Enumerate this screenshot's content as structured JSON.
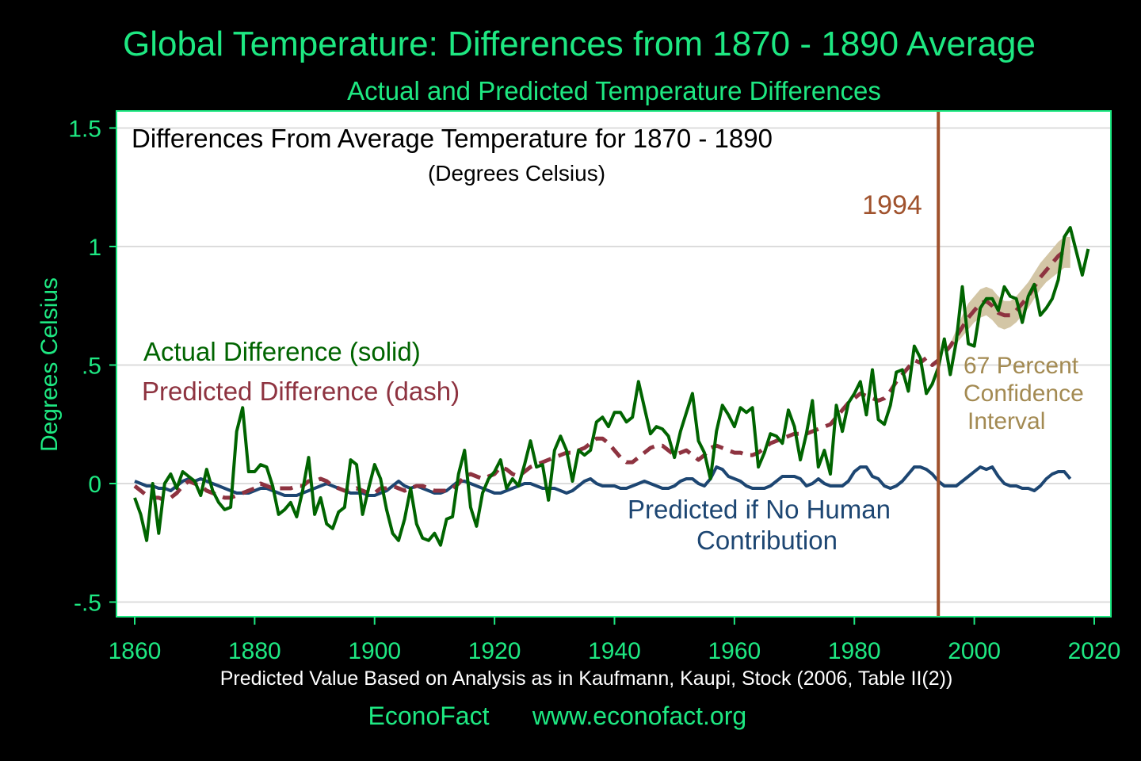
{
  "chart_data": {
    "type": "line",
    "title": "Global Temperature: Differences from 1870 - 1890 Average",
    "subtitle": "Actual and Predicted Temperature Differences",
    "inner_title": "Differences From Average Temperature for 1870 - 1890",
    "inner_subtitle": "(Degrees Celsius)",
    "ylabel": "Degrees Celsius",
    "xlabel": "Predicted Value Based on Analysis as in Kaufmann, Kaupi, Stock (2006, Table II(2))",
    "footer_left": "EconoFact",
    "footer_right": "www.econofact.org",
    "xlim": [
      1857,
      2023
    ],
    "ylim": [
      -0.56,
      1.58
    ],
    "x_ticks": [
      1860,
      1880,
      1900,
      1920,
      1940,
      1960,
      1980,
      2000,
      2020
    ],
    "x_tick_labels": [
      "1860",
      "1880",
      "1900",
      "1920",
      "1940",
      "1960",
      "1980",
      "2000",
      "2020"
    ],
    "y_ticks": [
      1.5,
      1,
      0.5,
      0,
      -0.5
    ],
    "y_tick_labels": [
      "1.5",
      "1",
      ".5",
      "0",
      "-.5"
    ],
    "grid": true,
    "colors": {
      "actual": "#006400",
      "predicted": "#8E3340",
      "natural": "#1D4672",
      "marker": "#A0522D",
      "ci": "#D3C6A6",
      "ci_text": "#A38A52",
      "title": "#1EE882"
    },
    "vline": {
      "x": 1994,
      "label": "1994"
    },
    "series": [
      {
        "name": "Actual Difference (solid)",
        "style": "solid",
        "x_start": 1860,
        "values": [
          -0.06,
          -0.13,
          -0.24,
          0.0,
          -0.21,
          0.0,
          0.04,
          -0.02,
          0.05,
          0.03,
          0.01,
          -0.05,
          0.06,
          -0.03,
          -0.08,
          -0.11,
          -0.1,
          0.22,
          0.32,
          0.05,
          0.05,
          0.08,
          0.07,
          -0.01,
          -0.13,
          -0.11,
          -0.08,
          -0.14,
          -0.03,
          0.11,
          -0.13,
          -0.06,
          -0.17,
          -0.19,
          -0.12,
          -0.1,
          0.1,
          0.08,
          -0.13,
          -0.02,
          0.08,
          0.02,
          -0.11,
          -0.21,
          -0.24,
          -0.15,
          -0.02,
          -0.17,
          -0.23,
          -0.24,
          -0.21,
          -0.26,
          -0.15,
          -0.14,
          0.04,
          0.14,
          -0.1,
          -0.18,
          -0.04,
          0.02,
          0.05,
          0.1,
          -0.02,
          0.02,
          -0.01,
          0.08,
          0.18,
          0.07,
          0.08,
          -0.07,
          0.14,
          0.2,
          0.14,
          0.01,
          0.14,
          0.12,
          0.14,
          0.26,
          0.28,
          0.24,
          0.3,
          0.3,
          0.26,
          0.28,
          0.43,
          0.32,
          0.21,
          0.24,
          0.23,
          0.2,
          0.11,
          0.22,
          0.3,
          0.38,
          0.18,
          0.13,
          0.02,
          0.22,
          0.33,
          0.29,
          0.24,
          0.32,
          0.3,
          0.32,
          0.07,
          0.13,
          0.21,
          0.2,
          0.17,
          0.31,
          0.24,
          0.1,
          0.21,
          0.35,
          0.07,
          0.14,
          0.04,
          0.33,
          0.22,
          0.34,
          0.38,
          0.43,
          0.29,
          0.48,
          0.27,
          0.25,
          0.33,
          0.47,
          0.48,
          0.39,
          0.58,
          0.53,
          0.38,
          0.42,
          0.49,
          0.61,
          0.46,
          0.6,
          0.83,
          0.59,
          0.58,
          0.74,
          0.78,
          0.78,
          0.73,
          0.83,
          0.79,
          0.78,
          0.68,
          0.79,
          0.84,
          0.71,
          0.74,
          0.78,
          0.86,
          1.04,
          1.08,
          0.98,
          0.88,
          0.99
        ]
      },
      {
        "name": "Predicted Difference (dash)",
        "style": "dash",
        "x_start": 1860,
        "values": [
          -0.01,
          -0.03,
          -0.05,
          -0.06,
          -0.06,
          -0.07,
          -0.06,
          -0.04,
          -0.01,
          0.01,
          0.0,
          -0.01,
          -0.03,
          -0.04,
          -0.05,
          -0.06,
          -0.06,
          -0.05,
          -0.04,
          -0.03,
          -0.02,
          0.0,
          -0.01,
          -0.02,
          -0.02,
          -0.02,
          -0.02,
          -0.01,
          -0.01,
          0.01,
          0.01,
          0.02,
          0.01,
          -0.01,
          -0.02,
          -0.03,
          -0.03,
          -0.02,
          -0.03,
          -0.04,
          -0.04,
          -0.02,
          -0.02,
          -0.01,
          -0.02,
          -0.03,
          -0.02,
          -0.01,
          -0.01,
          -0.02,
          -0.03,
          -0.03,
          -0.03,
          -0.02,
          0.0,
          0.03,
          0.04,
          0.03,
          0.02,
          0.03,
          0.04,
          0.07,
          0.06,
          0.04,
          0.03,
          0.05,
          0.07,
          0.08,
          0.09,
          0.1,
          0.11,
          0.12,
          0.13,
          0.13,
          0.14,
          0.15,
          0.17,
          0.19,
          0.19,
          0.17,
          0.14,
          0.11,
          0.09,
          0.09,
          0.11,
          0.13,
          0.15,
          0.16,
          0.16,
          0.14,
          0.12,
          0.13,
          0.14,
          0.12,
          0.1,
          0.12,
          0.15,
          0.16,
          0.15,
          0.14,
          0.13,
          0.13,
          0.12,
          0.12,
          0.13,
          0.15,
          0.17,
          0.18,
          0.19,
          0.2,
          0.21,
          0.21,
          0.21,
          0.22,
          0.23,
          0.24,
          0.25,
          0.28,
          0.31,
          0.34,
          0.36,
          0.38,
          0.37,
          0.36,
          0.35,
          0.36,
          0.39,
          0.43,
          0.46,
          0.49,
          0.52,
          0.51,
          0.53,
          0.5,
          0.52,
          0.55,
          0.58,
          0.62,
          0.66,
          0.7,
          0.73,
          0.76,
          0.77,
          0.75,
          0.72,
          0.71,
          0.71,
          0.73,
          0.76,
          0.79,
          0.83,
          0.87,
          0.9,
          0.93,
          0.96,
          0.98,
          0.98
        ]
      },
      {
        "name": "Predicted if No Human Contribution",
        "style": "solid",
        "x_start": 1860,
        "values": [
          0.01,
          0.0,
          -0.01,
          -0.01,
          -0.02,
          -0.02,
          -0.03,
          -0.01,
          0.01,
          0.02,
          0.01,
          0.02,
          0.01,
          0.0,
          -0.01,
          -0.02,
          -0.03,
          -0.04,
          -0.04,
          -0.04,
          -0.03,
          -0.02,
          -0.02,
          -0.03,
          -0.04,
          -0.05,
          -0.05,
          -0.05,
          -0.04,
          -0.03,
          -0.02,
          -0.01,
          0.0,
          -0.01,
          -0.02,
          -0.03,
          -0.04,
          -0.04,
          -0.04,
          -0.05,
          -0.05,
          -0.04,
          -0.03,
          -0.01,
          0.01,
          -0.01,
          -0.02,
          -0.01,
          -0.02,
          -0.03,
          -0.04,
          -0.04,
          -0.03,
          -0.01,
          0.01,
          0.01,
          0.0,
          -0.01,
          -0.02,
          -0.03,
          -0.04,
          -0.04,
          -0.03,
          -0.02,
          -0.01,
          0.0,
          0.0,
          -0.01,
          -0.02,
          -0.02,
          -0.02,
          -0.03,
          -0.04,
          -0.03,
          -0.01,
          0.01,
          0.02,
          0.0,
          -0.01,
          -0.01,
          -0.01,
          -0.02,
          -0.02,
          -0.01,
          0.0,
          0.01,
          0.0,
          -0.01,
          -0.02,
          -0.02,
          -0.01,
          0.01,
          0.02,
          0.02,
          0.0,
          -0.01,
          0.02,
          0.07,
          0.06,
          0.03,
          0.02,
          0.01,
          -0.01,
          -0.02,
          -0.02,
          -0.02,
          -0.01,
          0.01,
          0.03,
          0.03,
          0.03,
          0.02,
          -0.01,
          0.0,
          0.02,
          0.0,
          -0.01,
          -0.01,
          -0.01,
          0.01,
          0.05,
          0.07,
          0.07,
          0.03,
          0.02,
          -0.01,
          -0.02,
          -0.01,
          0.01,
          0.04,
          0.07,
          0.07,
          0.06,
          0.04,
          0.01,
          -0.01,
          -0.01,
          -0.01,
          0.01,
          0.03,
          0.05,
          0.07,
          0.06,
          0.07,
          0.03,
          0.0,
          -0.01,
          -0.01,
          -0.02,
          -0.02,
          -0.03,
          -0.01,
          0.02,
          0.04,
          0.05,
          0.05,
          0.02
        ]
      }
    ],
    "confidence_band": {
      "label_lines": [
        "67 Percent",
        "Confidence",
        "Interval"
      ],
      "x_start": 1996,
      "lower": [
        0.57,
        0.59,
        0.62,
        0.65,
        0.68,
        0.7,
        0.71,
        0.69,
        0.66,
        0.65,
        0.66,
        0.68,
        0.71,
        0.74,
        0.78,
        0.82,
        0.85,
        0.87,
        0.89,
        0.91,
        0.91
      ],
      "upper": [
        0.59,
        0.65,
        0.71,
        0.76,
        0.79,
        0.82,
        0.83,
        0.82,
        0.79,
        0.77,
        0.77,
        0.79,
        0.82,
        0.85,
        0.89,
        0.93,
        0.96,
        0.99,
        1.02,
        1.04,
        1.04
      ]
    },
    "annotations": {
      "actual": "Actual Difference (solid)",
      "predicted": "Predicted Difference (dash)",
      "natural_line1": "Predicted if No Human",
      "natural_line2": "Contribution"
    }
  }
}
